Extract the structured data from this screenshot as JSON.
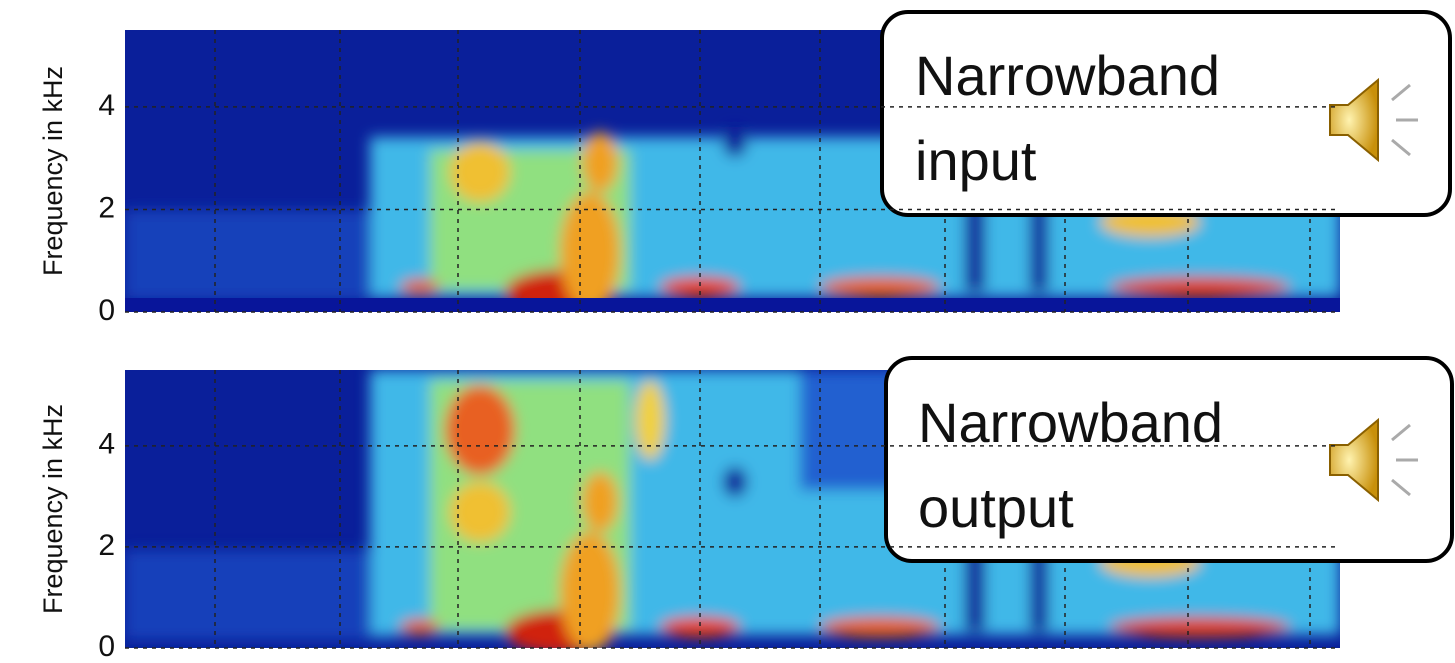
{
  "chart_data": [
    {
      "type": "spectrogram",
      "ylabel": "Frequency in kHz",
      "ylim": [
        0,
        5.5
      ],
      "yticks": [
        0,
        2,
        4
      ],
      "grid": true,
      "annotation": [
        "Narrowband",
        "input"
      ]
    },
    {
      "type": "spectrogram",
      "ylabel": "Frequency in kHz",
      "ylim": [
        0,
        5.5
      ],
      "yticks": [
        0,
        2,
        4
      ],
      "grid": true,
      "annotation": [
        "Narrowband",
        "output"
      ]
    }
  ]
}
